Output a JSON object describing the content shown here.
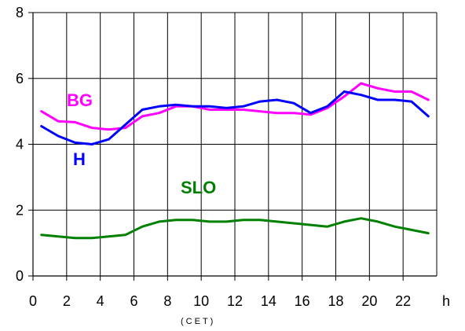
{
  "chart_data": {
    "type": "line",
    "xlabel": "(CET)",
    "x_unit": "h",
    "xlim": [
      0,
      24
    ],
    "ylim": [
      0,
      8
    ],
    "x_ticks": [
      "0",
      "2",
      "4",
      "6",
      "8",
      "10",
      "12",
      "14",
      "16",
      "18",
      "20",
      "22"
    ],
    "y_ticks": [
      "0",
      "2",
      "4",
      "6",
      "8"
    ],
    "grid": true,
    "x": [
      0.5,
      1.5,
      2.5,
      3.5,
      4.5,
      5.5,
      6.5,
      7.5,
      8.5,
      9.5,
      10.5,
      11.5,
      12.5,
      13.5,
      14.5,
      15.5,
      16.5,
      17.5,
      18.5,
      19.5,
      20.5,
      21.5,
      22.5,
      23.5
    ],
    "series": [
      {
        "name": "BG",
        "color": "#ff00ff",
        "values": [
          5.0,
          4.7,
          4.67,
          4.5,
          4.45,
          4.5,
          4.85,
          4.95,
          5.15,
          5.15,
          5.05,
          5.05,
          5.05,
          5.0,
          4.95,
          4.95,
          4.9,
          5.1,
          5.45,
          5.85,
          5.7,
          5.6,
          5.6,
          5.35
        ]
      },
      {
        "name": "H",
        "color": "#0000ff",
        "values": [
          4.55,
          4.25,
          4.05,
          4.0,
          4.15,
          4.6,
          5.05,
          5.15,
          5.2,
          5.15,
          5.15,
          5.1,
          5.15,
          5.3,
          5.35,
          5.25,
          4.95,
          5.15,
          5.6,
          5.5,
          5.35,
          5.35,
          5.3,
          4.85
        ]
      },
      {
        "name": "SLO",
        "color": "#008000",
        "values": [
          1.25,
          1.2,
          1.15,
          1.15,
          1.2,
          1.25,
          1.5,
          1.65,
          1.7,
          1.7,
          1.65,
          1.65,
          1.7,
          1.7,
          1.65,
          1.6,
          1.55,
          1.5,
          1.65,
          1.75,
          1.65,
          1.5,
          1.4,
          1.3
        ]
      }
    ]
  }
}
